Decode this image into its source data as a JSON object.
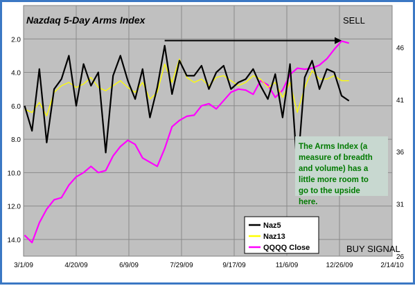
{
  "chart_data": {
    "type": "line",
    "title": "Nazdaq 5-Day Arms Index",
    "x_tick_labels": [
      "3/1/09",
      "4/20/09",
      "6/9/09",
      "7/29/09",
      "9/17/09",
      "11/6/09",
      "12/26/09",
      "2/14/10"
    ],
    "x_range": [
      "3/1/09",
      "2/14/10"
    ],
    "y_left": {
      "range": [
        0,
        15
      ],
      "reversed": true,
      "tick_labels": [
        "2.0",
        "4.0",
        "6.0",
        "8.0",
        "10.0",
        "12.0",
        "14.0"
      ]
    },
    "y_right": {
      "range": [
        26,
        50
      ],
      "tick_labels": [
        "46",
        "41",
        "36",
        "31",
        "26"
      ]
    },
    "grid": true,
    "legend_position": "bottom-center",
    "series": [
      {
        "name": "Naz5",
        "axis": "left",
        "color": "#000000",
        "x": [
          "3/2/09",
          "3/9/09",
          "3/16/09",
          "3/23/09",
          "3/30/09",
          "4/6/09",
          "4/13/09",
          "4/20/09",
          "4/27/09",
          "5/4/09",
          "5/11/09",
          "5/18/09",
          "5/25/09",
          "6/1/09",
          "6/8/09",
          "6/15/09",
          "6/22/09",
          "6/29/09",
          "7/6/09",
          "7/13/09",
          "7/20/09",
          "7/27/09",
          "8/3/09",
          "8/10/09",
          "8/17/09",
          "8/24/09",
          "8/31/09",
          "9/7/09",
          "9/14/09",
          "9/21/09",
          "9/28/09",
          "10/5/09",
          "10/12/09",
          "10/19/09",
          "10/26/09",
          "11/2/09",
          "11/9/09",
          "11/16/09",
          "11/23/09",
          "11/30/09",
          "12/7/09",
          "12/14/09",
          "12/21/09",
          "12/28/09",
          "1/4/10"
        ],
        "values": [
          6.0,
          7.5,
          3.8,
          8.2,
          5.0,
          4.4,
          3.0,
          6.0,
          3.5,
          4.8,
          4.0,
          8.8,
          4.2,
          3.0,
          4.5,
          5.6,
          3.8,
          6.7,
          4.9,
          2.4,
          5.3,
          3.3,
          4.2,
          4.2,
          3.6,
          5.0,
          4.0,
          3.6,
          5.0,
          4.6,
          4.4,
          3.8,
          4.8,
          5.6,
          4.1,
          6.7,
          3.5,
          9.9,
          4.3,
          3.3,
          5.0,
          3.8,
          4.0,
          5.4,
          5.7
        ]
      },
      {
        "name": "Naz13",
        "axis": "left",
        "color": "#ffff00",
        "x": [
          "3/2/09",
          "3/9/09",
          "3/16/09",
          "3/23/09",
          "3/30/09",
          "4/6/09",
          "4/13/09",
          "4/20/09",
          "4/27/09",
          "5/4/09",
          "5/11/09",
          "5/18/09",
          "5/25/09",
          "6/1/09",
          "6/8/09",
          "6/15/09",
          "6/22/09",
          "6/29/09",
          "7/6/09",
          "7/13/09",
          "7/20/09",
          "7/27/09",
          "8/3/09",
          "8/10/09",
          "8/17/09",
          "8/24/09",
          "8/31/09",
          "9/7/09",
          "9/14/09",
          "9/21/09",
          "9/28/09",
          "10/5/09",
          "10/12/09",
          "10/19/09",
          "10/26/09",
          "11/2/09",
          "11/9/09",
          "11/16/09",
          "11/23/09",
          "11/30/09",
          "12/7/09",
          "12/14/09",
          "12/21/09",
          "12/28/09",
          "1/4/10"
        ],
        "values": [
          6.2,
          6.4,
          5.8,
          6.6,
          5.2,
          4.8,
          4.6,
          4.9,
          4.7,
          4.3,
          4.9,
          5.1,
          4.8,
          4.5,
          4.9,
          5.2,
          4.6,
          5.6,
          5.2,
          3.5,
          4.6,
          3.2,
          4.3,
          4.6,
          4.4,
          4.8,
          4.3,
          4.2,
          4.5,
          4.8,
          4.6,
          4.2,
          4.4,
          4.9,
          4.6,
          5.5,
          4.6,
          6.4,
          4.9,
          3.9,
          4.4,
          4.4,
          4.2,
          4.5,
          4.5
        ]
      },
      {
        "name": "QQQQ Close",
        "axis": "right",
        "color": "#ff00ff",
        "x": [
          "3/2/09",
          "3/9/09",
          "3/16/09",
          "3/23/09",
          "3/30/09",
          "4/6/09",
          "4/13/09",
          "4/20/09",
          "4/27/09",
          "5/4/09",
          "5/11/09",
          "5/18/09",
          "5/25/09",
          "6/1/09",
          "6/8/09",
          "6/15/09",
          "6/22/09",
          "6/29/09",
          "7/6/09",
          "7/13/09",
          "7/20/09",
          "7/27/09",
          "8/3/09",
          "8/10/09",
          "8/17/09",
          "8/24/09",
          "8/31/09",
          "9/7/09",
          "9/14/09",
          "9/21/09",
          "9/28/09",
          "10/5/09",
          "10/12/09",
          "10/19/09",
          "10/26/09",
          "11/2/09",
          "11/9/09",
          "11/16/09",
          "11/23/09",
          "11/30/09",
          "12/7/09",
          "12/14/09",
          "12/21/09",
          "12/28/09",
          "1/4/10"
        ],
        "values": [
          28.0,
          27.3,
          29.2,
          30.5,
          31.4,
          31.6,
          32.8,
          33.6,
          34.0,
          34.6,
          34.0,
          34.2,
          35.6,
          36.5,
          37.1,
          36.7,
          35.4,
          35.0,
          34.6,
          36.3,
          38.4,
          39.0,
          39.4,
          39.5,
          40.4,
          40.6,
          40.1,
          40.9,
          41.7,
          42.0,
          41.9,
          41.5,
          42.8,
          42.4,
          41.2,
          41.9,
          43.4,
          44.0,
          43.9,
          44.0,
          44.3,
          44.9,
          45.8,
          46.6,
          46.4
        ]
      }
    ],
    "annotations": {
      "sell_label": "SELL",
      "buy_signal_label": "BUY SIGNAL",
      "note": "The Arms Index (a measure of breadth and volume) has a little more room to go to the upside here.",
      "arrow_from": "7/13/09",
      "arrow_to": "12/28/09",
      "arrow_level": 2.1
    },
    "colors": {
      "frame": "#3b78c4",
      "plot_background": "#c0c0c0",
      "gridline": "#8a8a8a",
      "note_background": "#c8d8d0",
      "note_text": "#007a00"
    }
  }
}
